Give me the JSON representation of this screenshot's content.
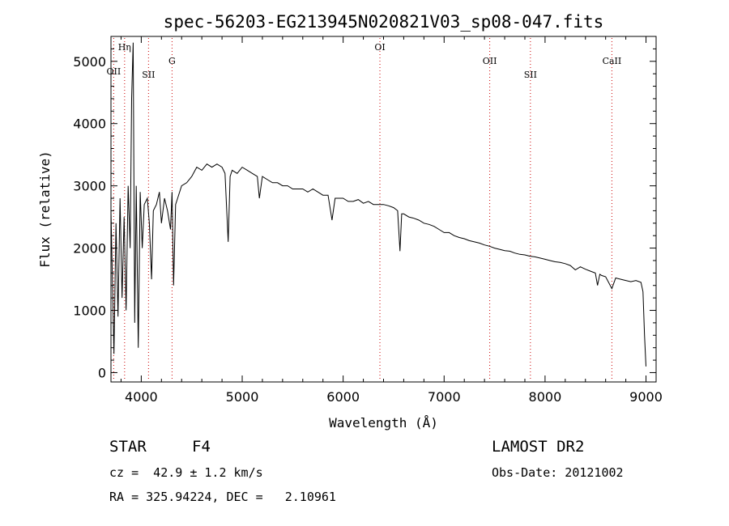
{
  "chart_data": {
    "type": "line",
    "title": "spec-56203-EG213945N020821V03_sp08-047.fits",
    "xlabel": "Wavelength (Å)",
    "ylabel": "Flux (relative)",
    "xlim": [
      3700,
      9100
    ],
    "ylim": [
      -150,
      5400
    ],
    "xticks": [
      4000,
      5000,
      6000,
      7000,
      8000,
      9000
    ],
    "yticks": [
      0,
      1000,
      2000,
      3000,
      4000,
      5000
    ],
    "grid": false,
    "series": [
      {
        "x": [
          3700,
          3730,
          3750,
          3770,
          3790,
          3810,
          3830,
          3850,
          3870,
          3890,
          3905,
          3920,
          3935,
          3950,
          3970,
          3990,
          4010,
          4030,
          4060,
          4080,
          4102,
          4120,
          4150,
          4180,
          4200,
          4230,
          4260,
          4290,
          4305,
          4320,
          4340,
          4360,
          4400,
          4450,
          4500,
          4550,
          4600,
          4650,
          4700,
          4750,
          4800,
          4830,
          4861,
          4880,
          4900,
          4950,
          5000,
          5050,
          5100,
          5150,
          5170,
          5200,
          5250,
          5300,
          5350,
          5400,
          5450,
          5500,
          5550,
          5600,
          5650,
          5700,
          5750,
          5800,
          5850,
          5890,
          5920,
          5950,
          6000,
          6050,
          6100,
          6150,
          6200,
          6250,
          6300,
          6350,
          6400,
          6450,
          6500,
          6540,
          6563,
          6580,
          6600,
          6650,
          6700,
          6750,
          6800,
          6850,
          6900,
          6950,
          7000,
          7050,
          7100,
          7150,
          7200,
          7250,
          7300,
          7350,
          7400,
          7450,
          7500,
          7550,
          7600,
          7650,
          7700,
          7750,
          7800,
          7850,
          7900,
          7950,
          8000,
          8050,
          8100,
          8150,
          8200,
          8250,
          8300,
          8350,
          8400,
          8450,
          8498,
          8520,
          8542,
          8560,
          8600,
          8662,
          8700,
          8750,
          8800,
          8850,
          8900,
          8950,
          8970,
          8985,
          9000
        ],
        "y": [
          2600,
          300,
          2400,
          900,
          2800,
          1200,
          2500,
          1000,
          3000,
          2000,
          4400,
          5300,
          800,
          3000,
          400,
          2900,
          2000,
          2700,
          2800,
          2400,
          1500,
          2600,
          2700,
          2900,
          2400,
          2800,
          2600,
          2300,
          2900,
          1400,
          2700,
          2800,
          3000,
          3050,
          3150,
          3300,
          3250,
          3350,
          3300,
          3350,
          3300,
          3200,
          2100,
          3150,
          3250,
          3200,
          3300,
          3250,
          3200,
          3150,
          2800,
          3150,
          3100,
          3050,
          3050,
          3000,
          3000,
          2950,
          2950,
          2950,
          2900,
          2950,
          2900,
          2850,
          2850,
          2450,
          2800,
          2800,
          2800,
          2750,
          2750,
          2780,
          2720,
          2750,
          2700,
          2700,
          2700,
          2680,
          2650,
          2600,
          1950,
          2550,
          2550,
          2500,
          2480,
          2450,
          2400,
          2380,
          2350,
          2300,
          2250,
          2250,
          2200,
          2170,
          2150,
          2120,
          2100,
          2080,
          2050,
          2030,
          2000,
          1980,
          1960,
          1950,
          1920,
          1900,
          1890,
          1870,
          1860,
          1840,
          1820,
          1800,
          1780,
          1770,
          1750,
          1720,
          1650,
          1700,
          1660,
          1630,
          1600,
          1400,
          1580,
          1560,
          1540,
          1350,
          1520,
          1500,
          1480,
          1460,
          1480,
          1450,
          1300,
          600,
          100
        ]
      }
    ],
    "line_markers": [
      {
        "label": "OII",
        "x": 3727
      },
      {
        "label": "Hη",
        "x": 3835
      },
      {
        "label": "SII",
        "x": 4072
      },
      {
        "label": "G",
        "x": 4305
      },
      {
        "label": "OI",
        "x": 6364
      },
      {
        "label": "OII",
        "x": 7452
      },
      {
        "label": "SII",
        "x": 7855
      },
      {
        "label": "CaII",
        "x": 8662
      }
    ]
  },
  "info": {
    "class_label": "STAR",
    "subclass": "F4",
    "survey": "LAMOST DR2",
    "redshift": "cz =  42.9 ± 1.2 km/s",
    "obs_date": "Obs-Date: 20121002",
    "coords": "RA = 325.94224, DEC =   2.10961"
  },
  "colors": {
    "line": "#000000",
    "marker": "#cc0000",
    "axis": "#000000",
    "background": "#ffffff"
  }
}
